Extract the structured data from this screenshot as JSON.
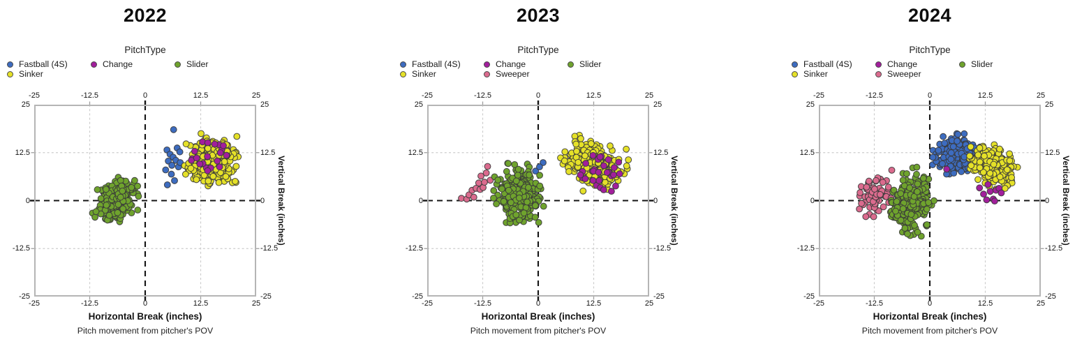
{
  "figure": {
    "background": "#ffffff"
  },
  "palette": {
    "Fastball (4S)": "#3d6cc0",
    "Sinker": "#e5e128",
    "Change": "#a21e9c",
    "Sweeper": "#db6b8e",
    "Slider": "#6fa32d"
  },
  "chart_data": [
    {
      "type": "scatter",
      "title": "2022",
      "legend_title": "PitchType",
      "legend_columns": [
        [
          "Fastball (4S)",
          "Sinker"
        ],
        [
          "Change"
        ],
        [
          "Slider"
        ]
      ],
      "xlabel": "Horizontal Break (inches)",
      "ylabel": "Vertical Break (inches)",
      "caption": "Pitch movement from pitcher's POV",
      "xlim": [
        -25,
        25
      ],
      "ylim": [
        -25,
        25
      ],
      "xticks": [
        -25,
        -12.5,
        0,
        12.5,
        25
      ],
      "yticks": [
        25,
        12.5,
        0,
        -12.5,
        -25
      ],
      "grid": {
        "major_dashed_at": [
          -12.5,
          12.5
        ],
        "zero_lines_dashed": true,
        "legend_position": "top"
      },
      "series": [
        {
          "name": "Fastball (4S)",
          "color": "#3d6cc0",
          "points": [
            [
              6.4,
              18.5
            ],
            [
              4.9,
              13.2
            ],
            [
              5.6,
              12.1
            ],
            [
              6.3,
              11.3
            ],
            [
              7.2,
              13.7
            ],
            [
              7.8,
              12.7
            ],
            [
              5.2,
              10.3
            ],
            [
              6.0,
              9.2
            ],
            [
              6.9,
              10.5
            ],
            [
              7.5,
              8.8
            ],
            [
              4.6,
              8.0
            ],
            [
              5.9,
              6.9
            ],
            [
              7.9,
              9.9
            ],
            [
              6.6,
              5.2
            ],
            [
              5.0,
              4.1
            ]
          ]
        },
        {
          "name": "Sinker",
          "color": "#e5e128",
          "cluster": {
            "count": 340,
            "center": [
              14.8,
              10.2
            ],
            "sd": [
              2.5,
              2.6
            ],
            "corr": 0,
            "xrange": [
              8.6,
              21.5
            ],
            "yrange": [
              3.2,
              17.6
            ],
            "seed": 11
          }
        },
        {
          "name": "Change",
          "color": "#a21e9c",
          "cluster": {
            "count": 22,
            "center": [
              14.0,
              11.3
            ],
            "sd": [
              2.3,
              2.6
            ],
            "corr": 0,
            "xrange": [
              9.5,
              19.0
            ],
            "yrange": [
              4.5,
              16.3
            ],
            "seed": 12
          }
        },
        {
          "name": "Slider",
          "color": "#6fa32d",
          "cluster": {
            "count": 285,
            "center": [
              -6.6,
              -0.2
            ],
            "sd": [
              1.9,
              2.3
            ],
            "corr": 0.35,
            "xrange": [
              -12.3,
              -1.2
            ],
            "yrange": [
              -7.6,
              6.8
            ],
            "seed": 13
          }
        }
      ]
    },
    {
      "type": "scatter",
      "title": "2023",
      "legend_title": "PitchType",
      "legend_columns": [
        [
          "Fastball (4S)",
          "Sinker"
        ],
        [
          "Change",
          "Sweeper"
        ],
        [
          "Slider"
        ]
      ],
      "xlabel": "Horizontal Break (inches)",
      "ylabel": "Vertical Break (inches)",
      "caption": "Pitch movement from pitcher's POV",
      "xlim": [
        -25,
        25
      ],
      "ylim": [
        -25,
        25
      ],
      "xticks": [
        -25,
        -12.5,
        0,
        12.5,
        25
      ],
      "yticks": [
        25,
        12.5,
        0,
        -12.5,
        -25
      ],
      "grid": {
        "major_dashed_at": [
          -12.5,
          12.5
        ],
        "zero_lines_dashed": true,
        "legend_position": "top"
      },
      "series": [
        {
          "name": "Fastball (4S)",
          "color": "#3d6cc0",
          "points": [
            [
              1.1,
              9.9
            ],
            [
              -0.6,
              7.7
            ],
            [
              0.3,
              8.8
            ]
          ]
        },
        {
          "name": "Sinker",
          "color": "#e5e128",
          "cluster": {
            "count": 310,
            "center": [
              12.4,
              9.6
            ],
            "sd": [
              3.0,
              2.5
            ],
            "corr": -0.3,
            "xrange": [
              3.2,
              20.6
            ],
            "yrange": [
              1.8,
              18.2
            ],
            "seed": 21
          }
        },
        {
          "name": "Change",
          "color": "#a21e9c",
          "cluster": {
            "count": 30,
            "center": [
              14.6,
              6.6
            ],
            "sd": [
              2.5,
              2.6
            ],
            "corr": -0.2,
            "xrange": [
              8.3,
              19.3
            ],
            "yrange": [
              0.4,
              14.5
            ],
            "seed": 22
          }
        },
        {
          "name": "Sweeper",
          "color": "#db6b8e",
          "points": [
            [
              -17.3,
              0.6
            ],
            [
              -16.1,
              0.4
            ],
            [
              -15.6,
              1.5
            ],
            [
              -14.9,
              2.7
            ],
            [
              -14.5,
              0.9
            ],
            [
              -14.0,
              3.2
            ],
            [
              -13.4,
              4.6
            ],
            [
              -13.1,
              2.9
            ],
            [
              -12.9,
              6.4
            ],
            [
              -12.4,
              3.4
            ],
            [
              -12.1,
              4.8
            ],
            [
              -11.7,
              7.2
            ],
            [
              -11.4,
              8.9
            ],
            [
              -10.8,
              5.3
            ]
          ]
        },
        {
          "name": "Slider",
          "color": "#6fa32d",
          "cluster": {
            "count": 330,
            "center": [
              -4.4,
              1.2
            ],
            "sd": [
              2.2,
              2.9
            ],
            "corr": 0,
            "xrange": [
              -10.6,
              1.9
            ],
            "yrange": [
              -6.2,
              10.6
            ],
            "seed": 23
          }
        }
      ]
    },
    {
      "type": "scatter",
      "title": "2024",
      "legend_title": "PitchType",
      "legend_columns": [
        [
          "Fastball (4S)",
          "Sinker"
        ],
        [
          "Change",
          "Sweeper"
        ],
        [
          "Slider"
        ]
      ],
      "xlabel": "Horizontal Break (inches)",
      "ylabel": "Vertical Break (inches)",
      "caption": "Pitch movement from pitcher's POV",
      "xlim": [
        -25,
        25
      ],
      "ylim": [
        -25,
        25
      ],
      "xticks": [
        -25,
        -12.5,
        0,
        12.5,
        25
      ],
      "yticks": [
        25,
        12.5,
        0,
        -12.5,
        -25
      ],
      "grid": {
        "major_dashed_at": [
          -12.5,
          12.5
        ],
        "zero_lines_dashed": true,
        "legend_position": "top"
      },
      "series": [
        {
          "name": "Fastball (4S)",
          "color": "#3d6cc0",
          "cluster": {
            "count": 225,
            "center": [
              5.9,
              11.9
            ],
            "sd": [
              2.2,
              2.2
            ],
            "corr": 0.1,
            "xrange": [
              0.4,
              11.6
            ],
            "yrange": [
              6.2,
              17.6
            ],
            "seed": 31
          }
        },
        {
          "name": "Sinker",
          "color": "#e5e128",
          "cluster": {
            "count": 275,
            "center": [
              14.3,
              8.9
            ],
            "sd": [
              2.3,
              2.1
            ],
            "corr": -0.25,
            "xrange": [
              8.9,
              20.6
            ],
            "yrange": [
              2.6,
              15.6
            ],
            "seed": 32
          }
        },
        {
          "name": "Change",
          "color": "#a21e9c",
          "points": [
            [
              3.8,
              8.2
            ],
            [
              11.2,
              3.3
            ],
            [
              12.1,
              1.7
            ],
            [
              12.8,
              0.2
            ],
            [
              13.6,
              2.4
            ],
            [
              14.3,
              0.4
            ],
            [
              14.9,
              2.7
            ],
            [
              15.6,
              3.2
            ],
            [
              16.1,
              2.0
            ],
            [
              13.1,
              4.2
            ],
            [
              14.6,
              -0.1
            ]
          ]
        },
        {
          "name": "Sweeper",
          "color": "#db6b8e",
          "cluster": {
            "count": 70,
            "center": [
              -12.4,
              1.6
            ],
            "sd": [
              2.1,
              2.2
            ],
            "corr": 0.4,
            "xrange": [
              -17.8,
              -7.6
            ],
            "yrange": [
              -4.6,
              8.6
            ],
            "seed": 34
          }
        },
        {
          "name": "Slider",
          "color": "#6fa32d",
          "cluster": {
            "count": 300,
            "center": [
              -4.5,
              -0.9
            ],
            "sd": [
              2.1,
              3.0
            ],
            "corr": 0.3,
            "xrange": [
              -9.8,
              1.1
            ],
            "yrange": [
              -10.2,
              10.2
            ],
            "seed": 35
          }
        }
      ]
    }
  ]
}
